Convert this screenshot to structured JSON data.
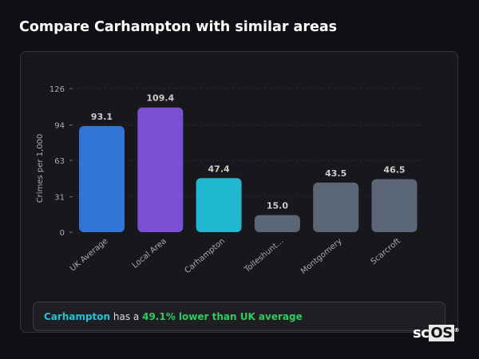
{
  "header": {
    "title": "Compare Carhampton with similar areas"
  },
  "chart_data": {
    "type": "bar",
    "ylabel": "Crimes per 1,000",
    "xlabel": "",
    "ylim": [
      0,
      126
    ],
    "yticks": [
      0,
      31,
      63,
      94,
      126
    ],
    "categories": [
      "UK Average",
      "Local Area",
      "Carhampton",
      "Tolleshunt...",
      "Montgomery",
      "Scarcroft"
    ],
    "values": [
      93.1,
      109.4,
      47.4,
      15.0,
      43.5,
      46.5
    ],
    "value_labels": [
      "93.1",
      "109.4",
      "47.4",
      "15.0",
      "43.5",
      "46.5"
    ],
    "colors": [
      "#3375d6",
      "#7b4fd3",
      "#20b8d0",
      "#5b6679",
      "#5b6679",
      "#5b6679"
    ],
    "grid": true
  },
  "summary": {
    "area": "Carhampton",
    "middle": " has a ",
    "stat": "49.1% lower than UK average"
  },
  "logo": {
    "text_a": "sc",
    "text_b": "OS",
    "mark": "®"
  }
}
